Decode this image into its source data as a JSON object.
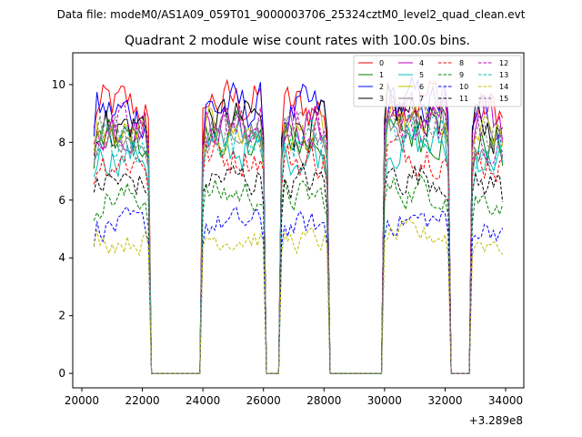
{
  "chart_data": {
    "type": "line",
    "suptitle": "Data file: modeM0/AS1A09_059T01_9000003706_25324cztM0_level2_quad_clean.evt",
    "title": "Quadrant 2 module wise count rates with 100.0s bins.",
    "xlabel": "",
    "ylabel": "",
    "x_offset_label": "+3.289e8",
    "xlim": [
      19700,
      34600
    ],
    "ylim": [
      -0.5,
      11.1
    ],
    "x_ticks": [
      20000,
      22000,
      24000,
      26000,
      28000,
      30000,
      32000,
      34000
    ],
    "x_tick_labels": [
      "20000",
      "22000",
      "24000",
      "26000",
      "28000",
      "30000",
      "32000",
      "34000"
    ],
    "y_ticks": [
      0,
      2,
      4,
      6,
      8,
      10
    ],
    "y_tick_labels": [
      "0",
      "2",
      "4",
      "6",
      "8",
      "10"
    ],
    "legend_position": "top-right",
    "time_segments": [
      [
        20400,
        22200
      ],
      [
        24000,
        26000
      ],
      [
        26600,
        28100
      ],
      [
        30000,
        32100
      ],
      [
        32900,
        33950
      ]
    ],
    "segments_note": "count rates are ~0 between good-time segments; each series shows ~±8% bin-to-bin jitter",
    "series": [
      {
        "name": "0",
        "color": "#ff0000",
        "style": "solid",
        "level": 9.2
      },
      {
        "name": "1",
        "color": "#008000",
        "style": "solid",
        "level": 8.0
      },
      {
        "name": "2",
        "color": "#0000ff",
        "style": "solid",
        "level": 9.0
      },
      {
        "name": "3",
        "color": "#000000",
        "style": "solid",
        "level": 8.6
      },
      {
        "name": "4",
        "color": "#bf00bf",
        "style": "solid",
        "level": 8.6
      },
      {
        "name": "5",
        "color": "#00bfbf",
        "style": "solid",
        "level": 7.6
      },
      {
        "name": "6",
        "color": "#bfbf00",
        "style": "solid",
        "level": 8.2
      },
      {
        "name": "7",
        "color": "#808080",
        "style": "solid",
        "level": 8.1
      },
      {
        "name": "8",
        "color": "#ff0000",
        "style": "dashed",
        "level": 7.4
      },
      {
        "name": "9",
        "color": "#008000",
        "style": "dashed",
        "level": 6.1
      },
      {
        "name": "10",
        "color": "#0000ff",
        "style": "dashed",
        "level": 5.1
      },
      {
        "name": "11",
        "color": "#000000",
        "style": "dashed",
        "level": 6.6
      },
      {
        "name": "12",
        "color": "#bf00bf",
        "style": "dashed",
        "level": 8.4
      },
      {
        "name": "13",
        "color": "#00bfbf",
        "style": "dashed",
        "level": 8.0
      },
      {
        "name": "14",
        "color": "#bfbf00",
        "style": "dashed",
        "level": 4.6
      },
      {
        "name": "15",
        "color": "#808080",
        "style": "dashed",
        "level": 8.3
      }
    ]
  }
}
